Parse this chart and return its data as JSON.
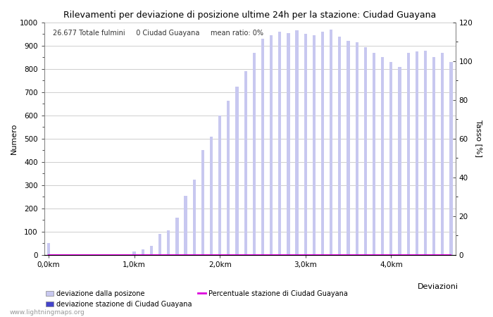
{
  "title": "Rilevamenti per deviazione di posizione ultime 24h per la stazione: Ciudad Guayana",
  "annotation": "26.677 Totale fulmini     0 Ciudad Guayana     mean ratio: 0%",
  "xlabel": "Deviazioni",
  "ylabel_left": "Numero",
  "ylabel_right": "Tasso [%]",
  "watermark": "www.lightningmaps.org",
  "x_tick_labels": [
    "0,0km",
    "1,0km",
    "2,0km",
    "3,0km",
    "4,0km"
  ],
  "x_tick_positions": [
    0,
    10,
    20,
    30,
    40
  ],
  "bar_width": 0.35,
  "ylim_left": [
    0,
    1000
  ],
  "ylim_right": [
    0,
    120
  ],
  "bar_color_light": "#c8c8f0",
  "bar_color_dark": "#4444cc",
  "line_color": "#dd00dd",
  "bars_total": [
    50,
    2,
    2,
    2,
    2,
    2,
    2,
    2,
    2,
    2,
    15,
    25,
    40,
    90,
    105,
    160,
    255,
    325,
    450,
    510,
    600,
    665,
    725,
    790,
    870,
    930,
    945,
    960,
    955,
    965,
    950,
    945,
    960,
    970,
    940,
    920,
    915,
    895,
    870,
    850,
    830,
    810,
    870,
    875,
    880,
    850,
    870,
    830
  ],
  "bars_station": [
    0,
    0,
    0,
    0,
    0,
    0,
    0,
    0,
    0,
    0,
    0,
    0,
    0,
    0,
    0,
    0,
    0,
    0,
    0,
    0,
    0,
    0,
    0,
    0,
    0,
    0,
    0,
    0,
    0,
    0,
    0,
    0,
    0,
    0,
    0,
    0,
    0,
    0,
    0,
    0,
    0,
    0,
    0,
    0,
    0,
    0,
    0,
    0
  ],
  "line_values": [
    0,
    0,
    0,
    0,
    0,
    0,
    0,
    0,
    0,
    0,
    0,
    0,
    0,
    0,
    0,
    0,
    0,
    0,
    0,
    0,
    0,
    0,
    0,
    0,
    0,
    0,
    0,
    0,
    0,
    0,
    0,
    0,
    0,
    0,
    0,
    0,
    0,
    0,
    0,
    0,
    0,
    0,
    0,
    0,
    0,
    0,
    0,
    0
  ],
  "legend_light_label": "deviazione dalla posizone",
  "legend_dark_label": "deviazione stazione di Ciudad Guayana",
  "legend_line_label": "Percentuale stazione di Ciudad Guayana",
  "grid_color": "#bbbbbb",
  "title_fontsize": 9,
  "axis_fontsize": 8,
  "tick_fontsize": 7.5
}
